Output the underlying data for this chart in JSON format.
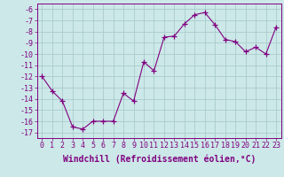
{
  "x": [
    0,
    1,
    2,
    3,
    4,
    5,
    6,
    7,
    8,
    9,
    10,
    11,
    12,
    13,
    14,
    15,
    16,
    17,
    18,
    19,
    20,
    21,
    22,
    23
  ],
  "y": [
    -12,
    -13.3,
    -14.2,
    -16.5,
    -16.7,
    -16.0,
    -16.0,
    -16.0,
    -13.5,
    -14.2,
    -10.7,
    -11.5,
    -8.5,
    -8.4,
    -7.3,
    -6.5,
    -6.3,
    -7.4,
    -8.7,
    -8.9,
    -9.8,
    -9.4,
    -10.0,
    -7.6
  ],
  "line_color": "#800080",
  "marker": "+",
  "marker_size": 4,
  "bg_color": "#cce8e8",
  "grid_color": "#aacccc",
  "xlabel": "Windchill (Refroidissement éolien,°C)",
  "xlabel_fontsize": 7,
  "tick_fontsize": 6,
  "ylim": [
    -17.5,
    -5.5
  ],
  "xlim": [
    -0.5,
    23.5
  ],
  "yticks": [
    -6,
    -7,
    -8,
    -9,
    -10,
    -11,
    -12,
    -13,
    -14,
    -15,
    -16,
    -17
  ],
  "xticks": [
    0,
    1,
    2,
    3,
    4,
    5,
    6,
    7,
    8,
    9,
    10,
    11,
    12,
    13,
    14,
    15,
    16,
    17,
    18,
    19,
    20,
    21,
    22,
    23
  ]
}
